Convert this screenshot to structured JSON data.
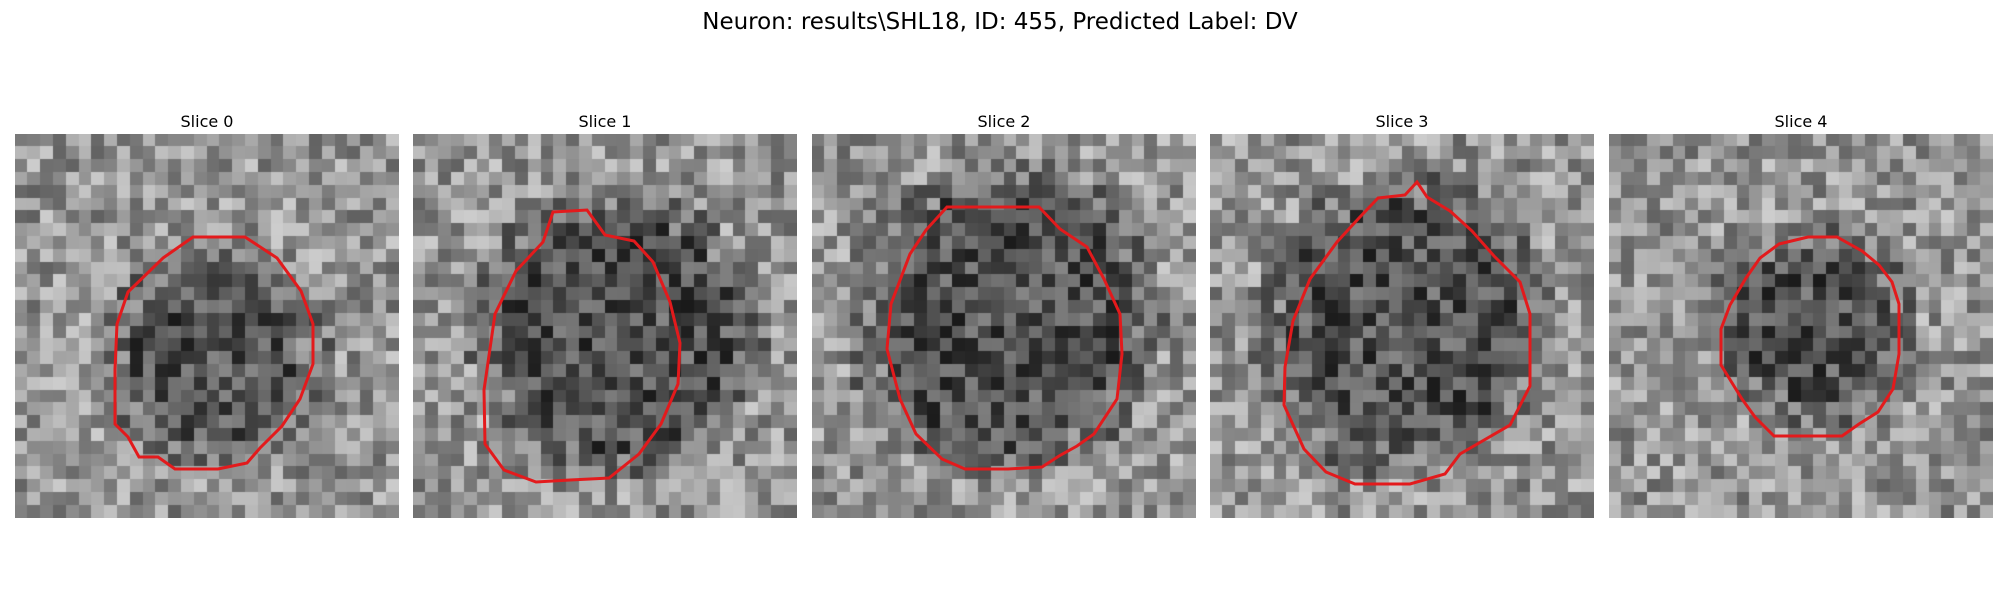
{
  "figure": {
    "title": "Neuron: results\\SHL18, ID: 455, Predicted Label: DV"
  },
  "panels": [
    {
      "title": "Slice 0",
      "seed": 11,
      "dark_cx": 0.52,
      "dark_cy": 0.58,
      "dark_r": 0.26
    },
    {
      "title": "Slice 1",
      "seed": 23,
      "dark_cx": 0.53,
      "dark_cy": 0.52,
      "dark_r": 0.35
    },
    {
      "title": "Slice 2",
      "seed": 37,
      "dark_cx": 0.5,
      "dark_cy": 0.48,
      "dark_r": 0.38
    },
    {
      "title": "Slice 3",
      "seed": 41,
      "dark_cx": 0.5,
      "dark_cy": 0.5,
      "dark_r": 0.36
    },
    {
      "title": "Slice 4",
      "seed": 53,
      "dark_cx": 0.53,
      "dark_cy": 0.5,
      "dark_r": 0.24
    }
  ],
  "colors": {
    "contour": "#e31a1c"
  }
}
